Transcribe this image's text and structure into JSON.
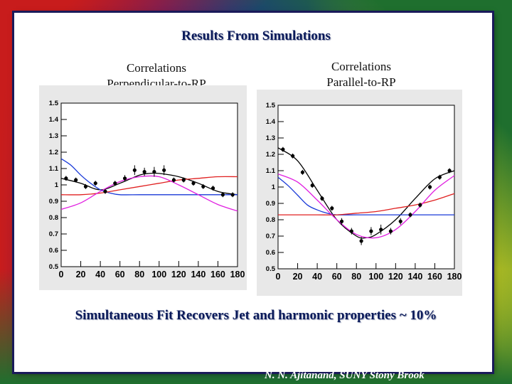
{
  "slide": {
    "title": "Results From Simulations",
    "caption": "Simultaneous Fit Recovers Jet and harmonic properties  ~ 10%",
    "credit": "N. N. Ajitanand, SUNY  Stony Brook"
  },
  "colors": {
    "fit": "#000000",
    "jet": "#1a3ad8",
    "harmonic": "#e02020",
    "harmonic2": "#e020e0",
    "points": "#000000"
  },
  "chart_data": [
    {
      "type": "line",
      "title": "Correlations\nPerpendicular-to-RP",
      "title_lines": [
        "Correlations",
        "Perpendicular-to-RP"
      ],
      "xlim": [
        0,
        180
      ],
      "ylim": [
        0.5,
        1.5
      ],
      "x_ticks": [
        0,
        20,
        40,
        60,
        80,
        100,
        120,
        140,
        160,
        180
      ],
      "y_ticks": [
        "0.5",
        "0.6",
        "0.7",
        "0.8",
        "0.9",
        "1",
        "1.1",
        "1.2",
        "1.3",
        "1.4",
        "1.5"
      ],
      "grid": false,
      "points": {
        "x": [
          5,
          15,
          25,
          35,
          45,
          55,
          65,
          75,
          85,
          95,
          105,
          115,
          125,
          135,
          145,
          155,
          165,
          175
        ],
        "y": [
          1.04,
          1.03,
          0.99,
          1.01,
          0.96,
          1.01,
          1.04,
          1.09,
          1.08,
          1.08,
          1.09,
          1.03,
          1.03,
          1.01,
          0.99,
          0.98,
          0.94,
          0.94
        ],
        "err": [
          0.015,
          0.015,
          0.015,
          0.015,
          0.015,
          0.015,
          0.02,
          0.03,
          0.025,
          0.03,
          0.03,
          0.015,
          0.015,
          0.015,
          0.015,
          0.015,
          0.015,
          0.015
        ]
      },
      "series": [
        {
          "color": "fit",
          "x": [
            0,
            20,
            40,
            60,
            80,
            90,
            100,
            120,
            140,
            160,
            180
          ],
          "y": [
            1.04,
            1.01,
            0.97,
            1.01,
            1.06,
            1.07,
            1.07,
            1.05,
            1.01,
            0.96,
            0.94
          ]
        },
        {
          "color": "jet",
          "x": [
            0,
            10,
            20,
            30,
            40,
            50,
            60,
            80,
            100,
            140,
            180
          ],
          "y": [
            1.16,
            1.12,
            1.06,
            1.01,
            0.97,
            0.95,
            0.94,
            0.94,
            0.94,
            0.94,
            0.94
          ]
        },
        {
          "color": "harmonic",
          "x": [
            0,
            20,
            40,
            60,
            80,
            100,
            120,
            140,
            160,
            180
          ],
          "y": [
            0.94,
            0.94,
            0.95,
            0.97,
            0.99,
            1.01,
            1.03,
            1.04,
            1.05,
            1.05
          ]
        },
        {
          "color": "harmonic2",
          "x": [
            0,
            20,
            40,
            60,
            80,
            100,
            120,
            140,
            160,
            180
          ],
          "y": [
            0.85,
            0.89,
            0.96,
            1.02,
            1.05,
            1.05,
            1.0,
            0.94,
            0.88,
            0.84
          ]
        }
      ]
    },
    {
      "type": "line",
      "title": "Correlations\nParallel-to-RP",
      "title_lines": [
        "Correlations",
        "Parallel-to-RP"
      ],
      "xlim": [
        0,
        180
      ],
      "ylim": [
        0.5,
        1.5
      ],
      "x_ticks": [
        0,
        20,
        40,
        60,
        80,
        100,
        120,
        140,
        160,
        180
      ],
      "y_ticks": [
        "0.5",
        "0.6",
        "0.7",
        "0.8",
        "0.9",
        "1",
        "1.1",
        "1.2",
        "1.3",
        "1.4",
        "1.5"
      ],
      "grid": false,
      "points": {
        "x": [
          5,
          15,
          25,
          35,
          45,
          55,
          65,
          75,
          85,
          95,
          105,
          115,
          125,
          135,
          145,
          155,
          165,
          175
        ],
        "y": [
          1.23,
          1.19,
          1.09,
          1.01,
          0.93,
          0.87,
          0.79,
          0.73,
          0.67,
          0.73,
          0.74,
          0.73,
          0.79,
          0.83,
          0.89,
          1.0,
          1.06,
          1.1
        ],
        "err": [
          0.015,
          0.015,
          0.015,
          0.015,
          0.015,
          0.015,
          0.02,
          0.02,
          0.025,
          0.025,
          0.03,
          0.02,
          0.02,
          0.015,
          0.015,
          0.015,
          0.015,
          0.015
        ]
      },
      "series": [
        {
          "color": "fit",
          "x": [
            0,
            20,
            40,
            60,
            80,
            90,
            100,
            120,
            140,
            160,
            180
          ],
          "y": [
            1.24,
            1.16,
            0.98,
            0.8,
            0.7,
            0.69,
            0.71,
            0.8,
            0.93,
            1.05,
            1.1
          ]
        },
        {
          "color": "jet",
          "x": [
            0,
            10,
            20,
            30,
            40,
            50,
            60,
            80,
            100,
            140,
            180
          ],
          "y": [
            1.06,
            1.01,
            0.95,
            0.89,
            0.86,
            0.84,
            0.83,
            0.83,
            0.83,
            0.83,
            0.83
          ]
        },
        {
          "color": "harmonic",
          "x": [
            0,
            20,
            40,
            60,
            80,
            100,
            120,
            140,
            160,
            180
          ],
          "y": [
            0.83,
            0.83,
            0.83,
            0.83,
            0.84,
            0.85,
            0.87,
            0.89,
            0.92,
            0.96
          ]
        },
        {
          "color": "harmonic2",
          "x": [
            0,
            20,
            40,
            60,
            80,
            100,
            120,
            140,
            160,
            180
          ],
          "y": [
            1.08,
            1.03,
            0.92,
            0.8,
            0.71,
            0.69,
            0.74,
            0.85,
            0.98,
            1.07
          ]
        }
      ]
    }
  ]
}
